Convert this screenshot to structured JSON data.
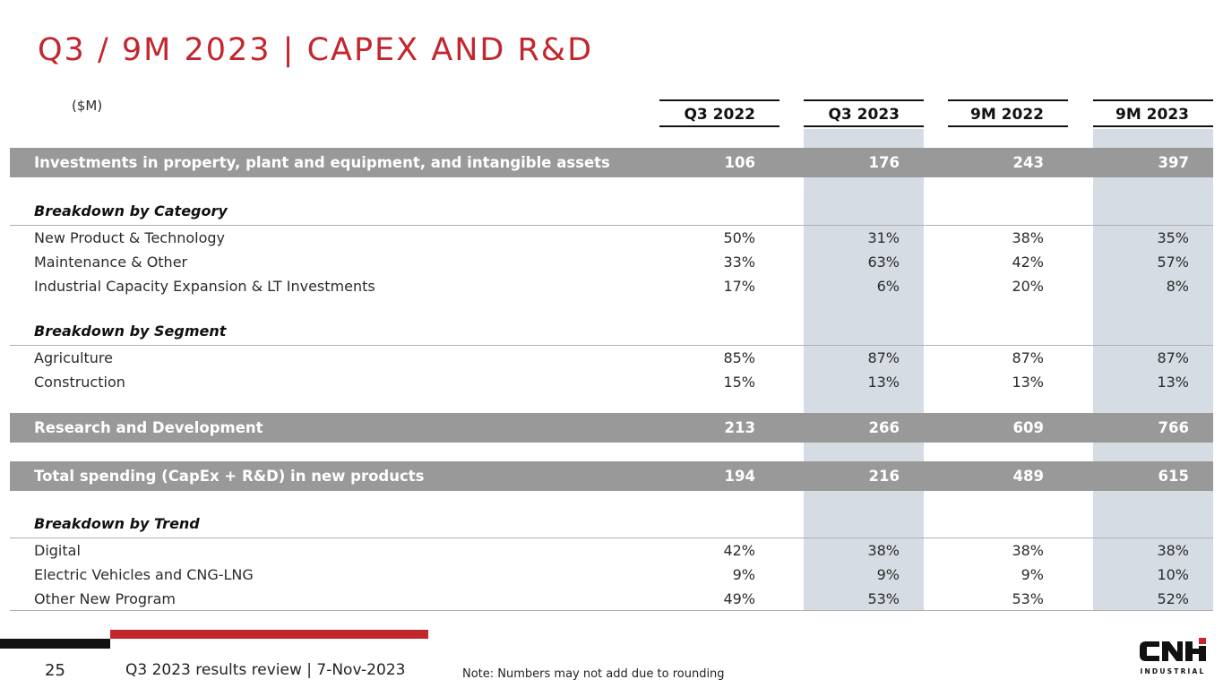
{
  "title": "Q3 / 9M 2023 | CAPEX AND R&D",
  "unit": "($M)",
  "columns": [
    "Q3 2022",
    "Q3 2023",
    "9M 2022",
    "9M 2023"
  ],
  "capex_row": {
    "label": "Investments in property, plant and equipment, and intangible assets",
    "values": [
      "106",
      "176",
      "243",
      "397"
    ]
  },
  "category": {
    "heading": "Breakdown by Category",
    "rows": [
      {
        "label": "New Product & Technology",
        "values": [
          "50%",
          "31%",
          "38%",
          "35%"
        ]
      },
      {
        "label": "Maintenance & Other",
        "values": [
          "33%",
          "63%",
          "42%",
          "57%"
        ]
      },
      {
        "label": "Industrial Capacity Expansion & LT Investments",
        "values": [
          "17%",
          "6%",
          "20%",
          "8%"
        ]
      }
    ]
  },
  "segment": {
    "heading": "Breakdown by Segment",
    "rows": [
      {
        "label": "Agriculture",
        "values": [
          "85%",
          "87%",
          "87%",
          "87%"
        ]
      },
      {
        "label": "Construction",
        "values": [
          "15%",
          "13%",
          "13%",
          "13%"
        ]
      }
    ]
  },
  "rnd_row": {
    "label": "Research and Development",
    "values": [
      "213",
      "266",
      "609",
      "766"
    ]
  },
  "total_row": {
    "label": "Total spending (CapEx + R&D) in new products",
    "values": [
      "194",
      "216",
      "489",
      "615"
    ]
  },
  "trend": {
    "heading": "Breakdown by Trend",
    "rows": [
      {
        "label": "Digital",
        "values": [
          "42%",
          "38%",
          "38%",
          "38%"
        ]
      },
      {
        "label": "Electric Vehicles and CNG-LNG",
        "values": [
          "9%",
          "9%",
          "9%",
          "10%"
        ]
      },
      {
        "label": "Other New Program",
        "values": [
          "49%",
          "53%",
          "53%",
          "52%"
        ]
      }
    ]
  },
  "footer": {
    "page_number": "25",
    "presentation": "Q3 2023 results review | 7-Nov-2023",
    "note": "Note: Numbers may not add due to rounding"
  },
  "logo": {
    "name": "CNH",
    "subtitle": "INDUSTRIAL"
  },
  "colors": {
    "accent_red": "#c1272d",
    "band_gray": "#999999",
    "shade_blue": "#d6dce4"
  }
}
